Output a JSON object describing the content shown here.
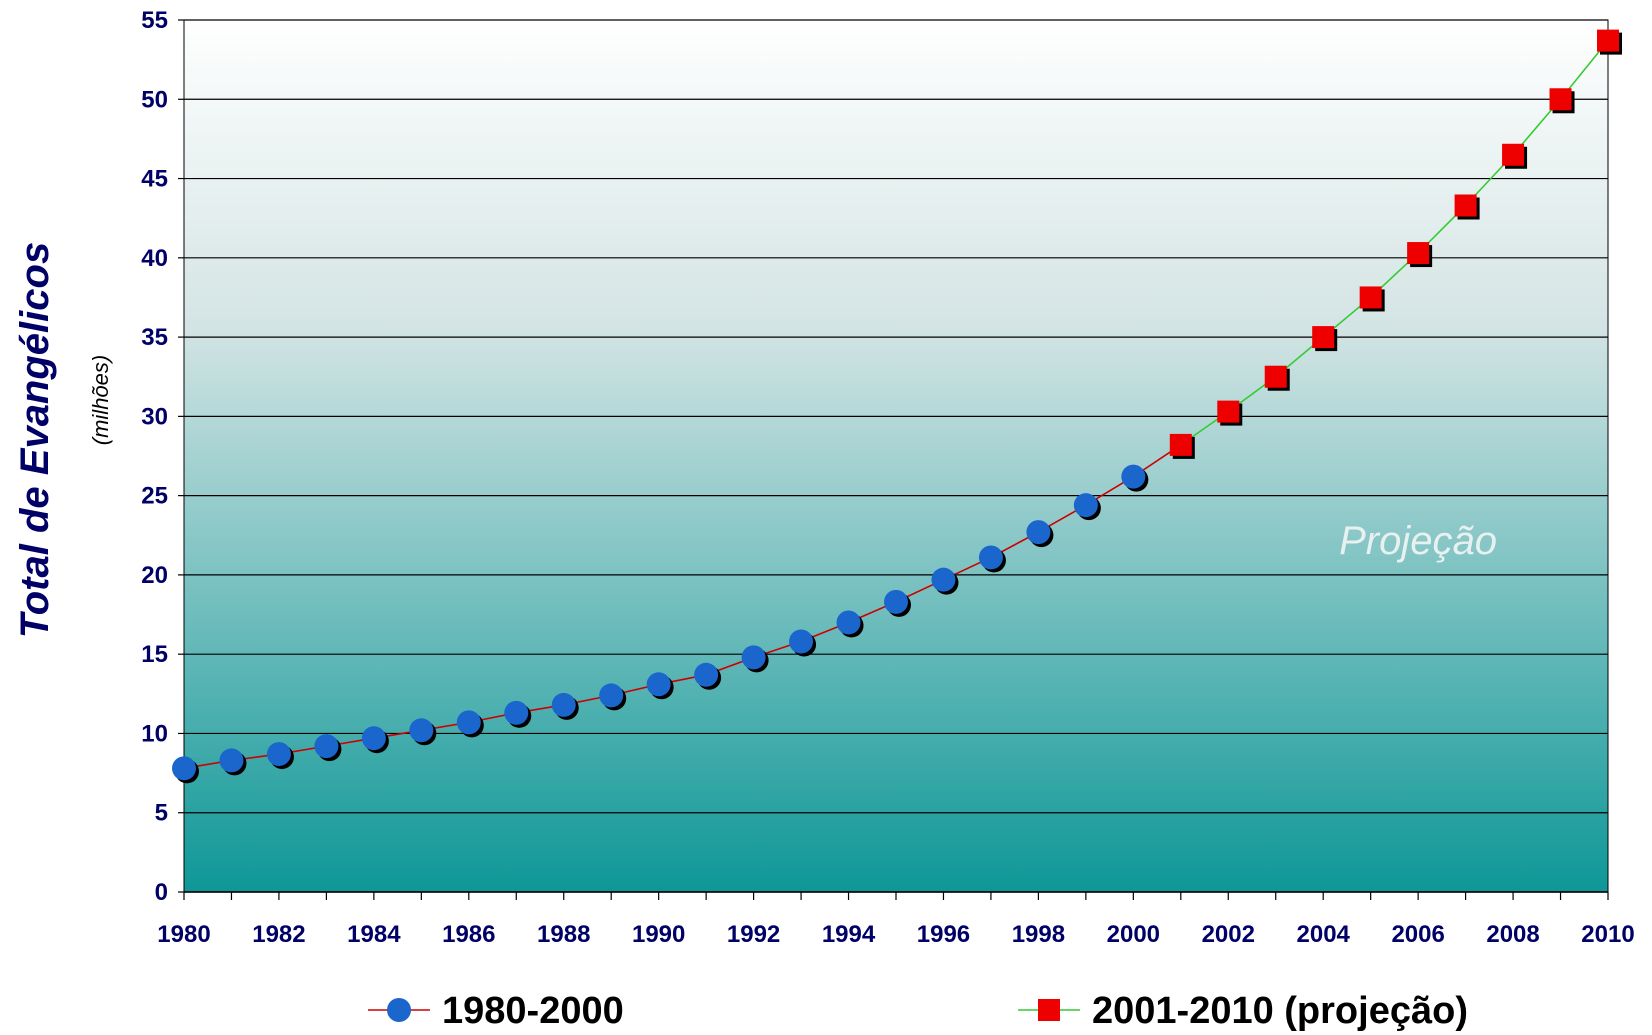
{
  "chart_data": {
    "type": "line",
    "ylabel": "Total de Evangélicos",
    "ylabel_sub": "(milhões)",
    "annotation": "Projeção",
    "ylim": [
      0,
      55
    ],
    "yticks": [
      "0",
      "5",
      "10",
      "15",
      "20",
      "25",
      "30",
      "35",
      "40",
      "45",
      "50",
      "55"
    ],
    "xlim": [
      1980,
      2010
    ],
    "xticks": [
      "1980",
      "1982",
      "1984",
      "1986",
      "1988",
      "1990",
      "1992",
      "1994",
      "1996",
      "1998",
      "2000",
      "2002",
      "2004",
      "2006",
      "2008",
      "2010"
    ],
    "grid": true,
    "legend_position": "bottom",
    "series": [
      {
        "name": "1980-2000",
        "marker": "circle",
        "marker_color": "#1a66cc",
        "line_color": "#cc0000",
        "x": [
          1980,
          1981,
          1982,
          1983,
          1984,
          1985,
          1986,
          1987,
          1988,
          1989,
          1990,
          1991,
          1992,
          1993,
          1994,
          1995,
          1996,
          1997,
          1998,
          1999,
          2000
        ],
        "y": [
          7.8,
          8.3,
          8.7,
          9.2,
          9.7,
          10.2,
          10.7,
          11.3,
          11.8,
          12.4,
          13.1,
          13.7,
          14.8,
          15.8,
          17.0,
          18.3,
          19.7,
          21.1,
          22.7,
          24.4,
          26.2
        ]
      },
      {
        "name": "2001-2010 (projeção)",
        "marker": "square",
        "marker_color": "#ee0000",
        "line_color": "#33cc33",
        "x": [
          2001,
          2002,
          2003,
          2004,
          2005,
          2006,
          2007,
          2008,
          2009,
          2010
        ],
        "y": [
          28.2,
          30.3,
          32.5,
          35.0,
          37.5,
          40.3,
          43.3,
          46.5,
          50.0,
          53.7
        ]
      }
    ]
  }
}
